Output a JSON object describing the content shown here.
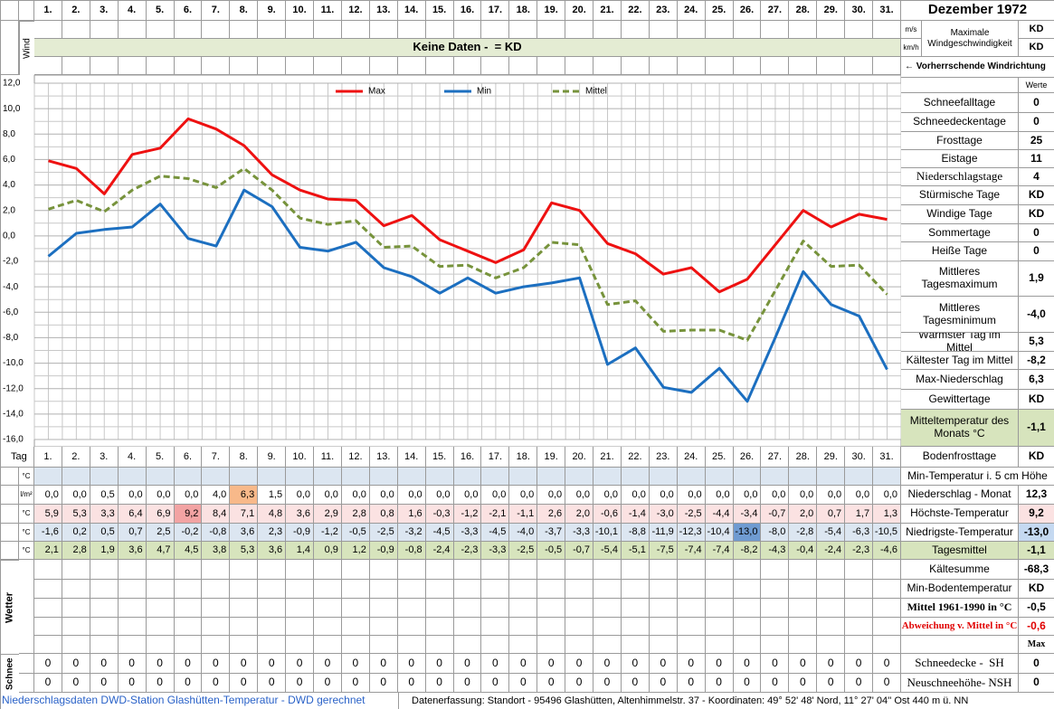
{
  "header": {
    "title": "Dezember 1972",
    "wind_label": "Wind",
    "wind_units": [
      "m/s",
      "km/h"
    ],
    "wind_max_label": "Maximale Windgeschwindigkeit",
    "wind_max_values": [
      "KD",
      "KD"
    ],
    "no_data": "Keine Daten -  = KD",
    "wind_direction": "← Vorherrschende Windrichtung",
    "values_header": "Werte"
  },
  "chart_data": {
    "type": "line",
    "categories": [
      "1.",
      "2.",
      "3.",
      "4.",
      "5.",
      "6.",
      "7.",
      "8.",
      "9.",
      "10.",
      "11.",
      "12.",
      "13.",
      "14.",
      "15.",
      "16.",
      "17.",
      "18.",
      "19.",
      "20.",
      "21.",
      "22.",
      "23.",
      "24.",
      "25.",
      "26.",
      "27.",
      "28.",
      "29.",
      "30.",
      "31."
    ],
    "series": [
      {
        "name": "Max",
        "color": "#ee1111",
        "dashed": false,
        "values": [
          5.9,
          5.3,
          3.3,
          6.4,
          6.9,
          9.2,
          8.4,
          7.1,
          4.8,
          3.6,
          2.9,
          2.8,
          0.8,
          1.6,
          -0.3,
          -1.2,
          -2.1,
          -1.1,
          2.6,
          2.0,
          -0.6,
          -1.4,
          -3.0,
          -2.5,
          -4.4,
          -3.4,
          -0.7,
          2.0,
          0.7,
          1.7,
          1.3
        ],
        "value_labels": [
          "5,9",
          "5,3",
          "3,3",
          "6,4",
          "6,9",
          "9,2",
          "8,4",
          "7,1",
          "4,8",
          "3,6",
          "2,9",
          "2,8",
          "0,8",
          "1,6",
          "-0,3",
          "-1,2",
          "-2,1",
          "-1,1",
          "2,6",
          "2,0",
          "-0,6",
          "-1,4",
          "-3,0",
          "-2,5",
          "-4,4",
          "-3,4",
          "-0,7",
          "2,0",
          "0,7",
          "1,7",
          "1,3"
        ]
      },
      {
        "name": "Min",
        "color": "#1c6fc0",
        "dashed": false,
        "values": [
          -1.6,
          0.2,
          0.5,
          0.7,
          2.5,
          -0.2,
          -0.8,
          3.6,
          2.3,
          -0.9,
          -1.2,
          -0.5,
          -2.5,
          -3.2,
          -4.5,
          -3.3,
          -4.5,
          -4.0,
          -3.7,
          -3.3,
          -10.1,
          -8.8,
          -11.9,
          -12.3,
          -10.4,
          -13.0,
          -8.0,
          -2.8,
          -5.4,
          -6.3,
          -10.5
        ],
        "value_labels": [
          "-1,6",
          "0,2",
          "0,5",
          "0,7",
          "2,5",
          "-0,2",
          "-0,8",
          "3,6",
          "2,3",
          "-0,9",
          "-1,2",
          "-0,5",
          "-2,5",
          "-3,2",
          "-4,5",
          "-3,3",
          "-4,5",
          "-4,0",
          "-3,7",
          "-3,3",
          "-10,1",
          "-8,8",
          "-11,9",
          "-12,3",
          "-10,4",
          "-13,0",
          "-8,0",
          "-2,8",
          "-5,4",
          "-6,3",
          "-10,5"
        ]
      },
      {
        "name": "Mittel",
        "color": "#77933c",
        "dashed": true,
        "values": [
          2.1,
          2.8,
          1.9,
          3.6,
          4.7,
          4.5,
          3.8,
          5.3,
          3.6,
          1.4,
          0.9,
          1.2,
          -0.9,
          -0.8,
          -2.4,
          -2.3,
          -3.3,
          -2.5,
          -0.5,
          -0.7,
          -5.4,
          -5.1,
          -7.5,
          -7.4,
          -7.4,
          -8.2,
          -4.3,
          -0.4,
          -2.4,
          -2.3,
          -4.6
        ],
        "value_labels": [
          "2,1",
          "2,8",
          "1,9",
          "3,6",
          "4,7",
          "4,5",
          "3,8",
          "5,3",
          "3,6",
          "1,4",
          "0,9",
          "1,2",
          "-0,9",
          "-0,8",
          "-2,4",
          "-2,3",
          "-3,3",
          "-2,5",
          "-0,5",
          "-0,7",
          "-5,4",
          "-5,1",
          "-7,5",
          "-7,4",
          "-7,4",
          "-8,2",
          "-4,3",
          "-0,4",
          "-2,4",
          "-2,3",
          "-4,6"
        ]
      }
    ],
    "ylim": [
      -16,
      12
    ],
    "yticks": [
      {
        "value": -16,
        "label": "-16,0"
      },
      {
        "value": -14,
        "label": "-14,0"
      },
      {
        "value": -12,
        "label": "-12,0"
      },
      {
        "value": -10,
        "label": "-10,0"
      },
      {
        "value": -8,
        "label": "-8,0"
      },
      {
        "value": -6,
        "label": "-6,0"
      },
      {
        "value": -4,
        "label": "-4,0"
      },
      {
        "value": -2,
        "label": "-2,0"
      },
      {
        "value": 0,
        "label": "0,0"
      },
      {
        "value": 2,
        "label": "2,0"
      },
      {
        "value": 4,
        "label": "4,0"
      },
      {
        "value": 6,
        "label": "6,0"
      },
      {
        "value": 8,
        "label": "8,0"
      },
      {
        "value": 10,
        "label": "10,0"
      },
      {
        "value": 12,
        "label": "12,0"
      }
    ],
    "grid": true,
    "legend": "top"
  },
  "summary": [
    {
      "label": "Schneefalltage",
      "value": "0"
    },
    {
      "label": "Schneedeckentage",
      "value": "0"
    },
    {
      "label": "Frosttage",
      "value": "25"
    },
    {
      "label": "Eistage",
      "value": "11"
    },
    {
      "label": "Niederschlagstage",
      "value": "4"
    },
    {
      "label": "Stürmische Tage",
      "value": "KD"
    },
    {
      "label": "Windige Tage",
      "value": "KD"
    },
    {
      "label": "Sommertage",
      "value": "0"
    },
    {
      "label": "Heiße Tage",
      "value": "0"
    },
    {
      "label": "Mittleres Tagesmaximum",
      "value": "1,9"
    },
    {
      "label": "Mittleres Tagesminimum",
      "value": "-4,0"
    },
    {
      "label": "Wärmster Tag im Mittel",
      "value": "5,3"
    },
    {
      "label": "Kältester Tag im Mittel",
      "value": "-8,2"
    },
    {
      "label": "Max-Niederschlag",
      "value": "6,3"
    },
    {
      "label": "Gewittertage",
      "value": "KD"
    },
    {
      "label": "Mitteltemperatur des Monats °C",
      "value": "-1,1"
    },
    {
      "label": "Bodenfrosttage",
      "value": "KD"
    }
  ],
  "table": {
    "day_label": "Tag",
    "min5cm": {
      "unit": "°C",
      "label": "Min-Temperatur i. 5 cm Höhe"
    },
    "precip": {
      "unit": "l/m²",
      "label": "Niederschlag - Monat",
      "total": "12,3",
      "values": [
        0,
        0,
        0.5,
        0,
        0,
        0,
        4.0,
        6.3,
        1.5,
        0,
        0,
        0,
        0,
        0,
        0,
        0,
        0,
        0,
        0,
        0,
        0,
        0,
        0,
        0,
        0,
        0,
        0,
        0,
        0,
        0,
        0
      ],
      "value_labels": [
        "0,0",
        "0,0",
        "0,5",
        "0,0",
        "0,0",
        "0,0",
        "4,0",
        "6,3",
        "1,5",
        "0,0",
        "0,0",
        "0,0",
        "0,0",
        "0,0",
        "0,0",
        "0,0",
        "0,0",
        "0,0",
        "0,0",
        "0,0",
        "0,0",
        "0,0",
        "0,0",
        "0,0",
        "0,0",
        "0,0",
        "0,0",
        "0,0",
        "0,0",
        "0,0",
        "0,0"
      ]
    },
    "temp_rows": [
      {
        "unit": "°C",
        "label": "Höchste-Temperatur",
        "total": "9,2"
      },
      {
        "unit": "°C",
        "label": "Niedrigste-Temperatur",
        "total": "-13,0"
      },
      {
        "unit": "°C",
        "label": "Tagesmittel",
        "total": "-1,1"
      }
    ],
    "weather_label": "Wetter",
    "extra": [
      {
        "label": "Kältesumme",
        "value": "-68,3"
      },
      {
        "label": "Min-Bodentemperatur",
        "value": "KD"
      },
      {
        "label": "Mittel 1961-1990 in °C",
        "value": "-0,5"
      },
      {
        "label": "Abweichung v. Mittel in °C",
        "value": "-0,6"
      }
    ],
    "max_header": "Max",
    "snow_label": "Schnee",
    "snow_rows": [
      {
        "label": "Schneedecke -  SH",
        "total": 0,
        "values": [
          0,
          0,
          0,
          0,
          0,
          0,
          0,
          0,
          0,
          0,
          0,
          0,
          0,
          0,
          0,
          0,
          0,
          0,
          0,
          0,
          0,
          0,
          0,
          0,
          0,
          0,
          0,
          0,
          0,
          0,
          0
        ]
      },
      {
        "label": "Neuschneehöhe- NSH",
        "total": 0,
        "values": [
          0,
          0,
          0,
          0,
          0,
          0,
          0,
          0,
          0,
          0,
          0,
          0,
          0,
          0,
          0,
          0,
          0,
          0,
          0,
          0,
          0,
          0,
          0,
          0,
          0,
          0,
          0,
          0,
          0,
          0,
          0
        ]
      }
    ]
  },
  "footer": {
    "left": "Niederschlagsdaten DWD-Station Glashütten-Temperatur -  DWD gerechnet",
    "right": "Datenerfassung: Standort -  95496  Glashütten, Altenhimmelstr. 37 - Koordinaten:  49° 52' 48' Nord,   11° 27' 04'' Ost   440 m ü. NN"
  }
}
